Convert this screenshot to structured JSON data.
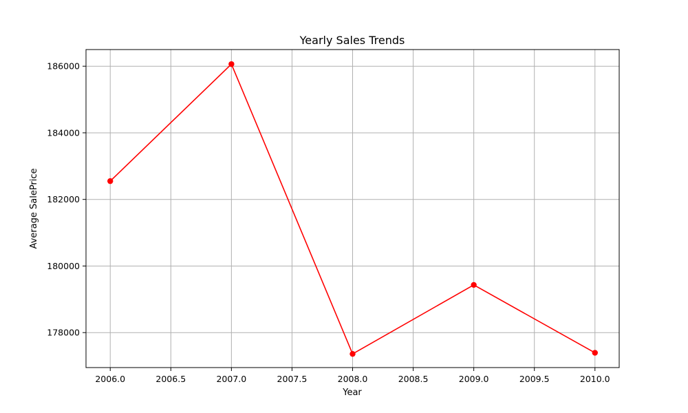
{
  "chart_data": {
    "type": "line",
    "title": "Yearly Sales Trends",
    "xlabel": "Year",
    "ylabel": "Average SalePrice",
    "xlim": [
      2005.8,
      2010.2
    ],
    "ylim": [
      176950,
      186500
    ],
    "x_ticks": [
      2006.0,
      2006.5,
      2007.0,
      2007.5,
      2008.0,
      2008.5,
      2009.0,
      2009.5,
      2010.0
    ],
    "x_tick_labels": [
      "2006.0",
      "2006.5",
      "2007.0",
      "2007.5",
      "2008.0",
      "2008.5",
      "2009.0",
      "2009.5",
      "2010.0"
    ],
    "y_ticks": [
      178000,
      180000,
      182000,
      184000,
      186000
    ],
    "y_tick_labels": [
      "178000",
      "180000",
      "182000",
      "184000",
      "186000"
    ],
    "grid": true,
    "series": [
      {
        "color": "#ff0000",
        "marker": "circle",
        "x": [
          2006,
          2007,
          2008,
          2009,
          2010
        ],
        "y": [
          182549,
          186063,
          177360,
          179432,
          177394
        ]
      }
    ]
  }
}
